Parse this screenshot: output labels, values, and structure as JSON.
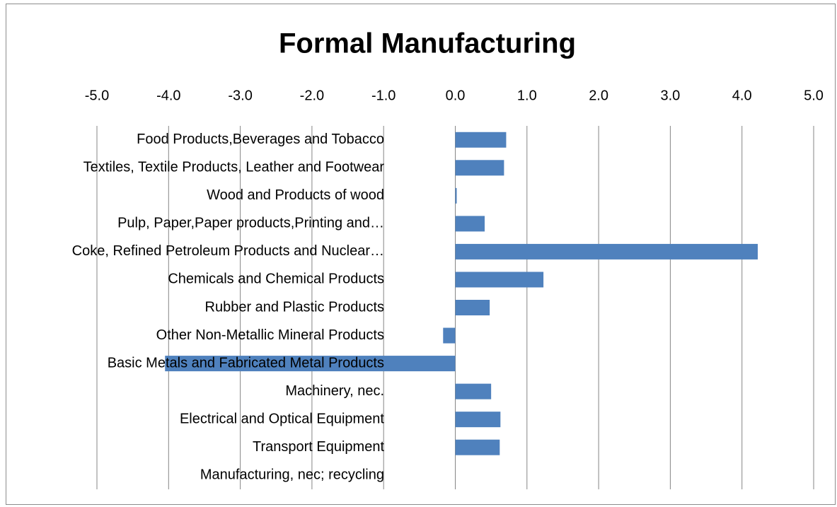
{
  "chart_data": {
    "type": "barh",
    "title": "Formal Manufacturing",
    "categories": [
      "Food Products,Beverages and Tobacco",
      "Textiles, Textile Products, Leather and Footwear",
      "Wood and Products of wood",
      "Pulp, Paper,Paper products,Printing and…",
      "Coke, Refined Petroleum Products and Nuclear…",
      "Chemicals and  Chemical Products",
      "Rubber and Plastic Products",
      "Other Non-Metallic Mineral Products",
      "Basic Metals and Fabricated Metal Products",
      "Machinery, nec.",
      "Electrical and Optical Equipment",
      "Transport Equipment",
      "Manufacturing, nec; recycling"
    ],
    "values": [
      0.71,
      0.68,
      0.02,
      0.41,
      4.22,
      1.23,
      0.48,
      -0.17,
      -4.05,
      0.5,
      0.63,
      0.62,
      0
    ],
    "color": "#4f81bd",
    "xlim": [
      -5,
      5
    ],
    "xticks": [
      {
        "value": -5,
        "label": "-5.0"
      },
      {
        "value": -4,
        "label": "-4.0"
      },
      {
        "value": -3,
        "label": "-3.0"
      },
      {
        "value": -2,
        "label": "-2.0"
      },
      {
        "value": -1,
        "label": "-1.0"
      },
      {
        "value": 0,
        "label": "0.0"
      },
      {
        "value": 1,
        "label": "1.0"
      },
      {
        "value": 2,
        "label": "2.0"
      },
      {
        "value": 3,
        "label": "3.0"
      },
      {
        "value": 4,
        "label": "4.0"
      },
      {
        "value": 5,
        "label": "5.0"
      }
    ],
    "grid": true
  }
}
